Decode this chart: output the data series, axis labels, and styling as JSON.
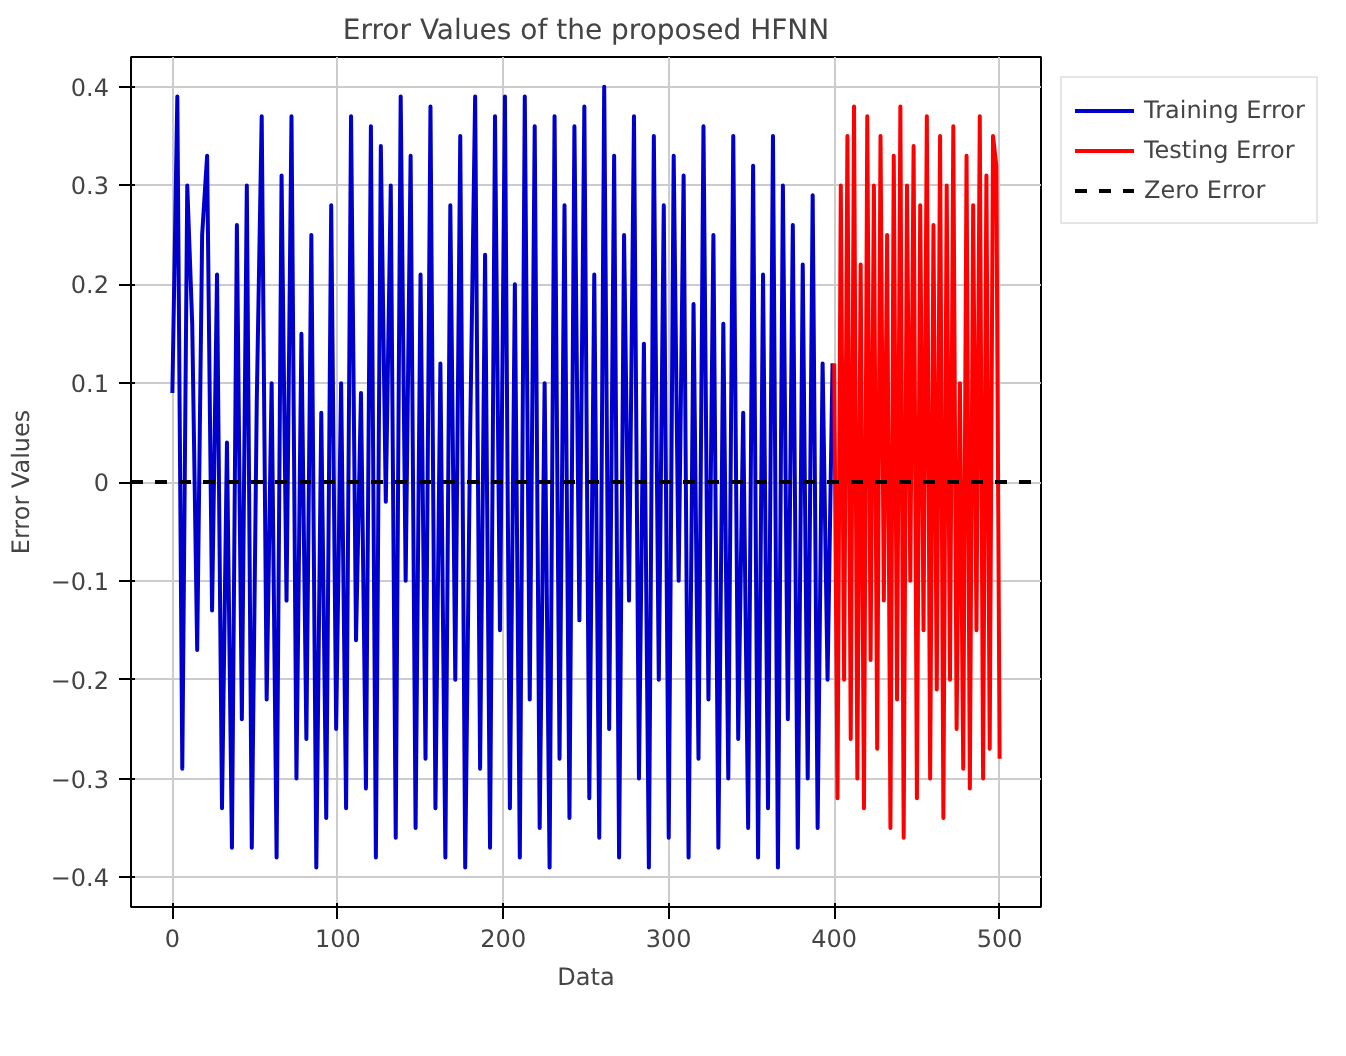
{
  "chart_data": {
    "type": "line",
    "title": "Error Values of the proposed HFNN",
    "xlabel": "Data",
    "ylabel": "Error Values",
    "xlim": [
      -25,
      525
    ],
    "ylim": [
      -0.43,
      0.43
    ],
    "xticks": [
      0,
      100,
      200,
      300,
      400,
      500
    ],
    "yticks": [
      -0.4,
      -0.3,
      -0.2,
      -0.1,
      0.0,
      0.1,
      0.2,
      0.3,
      0.4
    ],
    "grid": true,
    "legend": "top right",
    "line_style": "solid",
    "ref_lines": [
      {
        "axis": "y",
        "value": 0,
        "label": "Zero Error",
        "color": "#000000",
        "line_style": "dashed"
      }
    ],
    "series": [
      {
        "name": "Training Error",
        "color": "#0000cc",
        "x": [
          0,
          3,
          6,
          9,
          12,
          15,
          18,
          21,
          24,
          27,
          30,
          33,
          36,
          39,
          42,
          45,
          48,
          51,
          54,
          57,
          60,
          63,
          66,
          69,
          72,
          75,
          78,
          81,
          84,
          87,
          90,
          93,
          96,
          99,
          102,
          105,
          108,
          111,
          114,
          117,
          120,
          123,
          126,
          129,
          132,
          135,
          138,
          141,
          144,
          147,
          150,
          153,
          156,
          159,
          162,
          165,
          168,
          171,
          174,
          177,
          180,
          183,
          186,
          189,
          192,
          195,
          198,
          201,
          204,
          207,
          210,
          213,
          216,
          219,
          222,
          225,
          228,
          231,
          234,
          237,
          240,
          243,
          246,
          249,
          252,
          255,
          258,
          261,
          264,
          267,
          270,
          273,
          276,
          279,
          282,
          285,
          288,
          291,
          294,
          297,
          300,
          303,
          306,
          309,
          312,
          315,
          318,
          321,
          324,
          327,
          330,
          333,
          336,
          339,
          342,
          345,
          348,
          351,
          354,
          357,
          360,
          363,
          366,
          369,
          372,
          375,
          378,
          381,
          384,
          387,
          390,
          393,
          396,
          399
        ],
        "values": [
          0.09,
          0.39,
          -0.29,
          0.3,
          0.16,
          -0.17,
          0.25,
          0.33,
          -0.13,
          0.21,
          -0.33,
          0.04,
          -0.37,
          0.26,
          -0.24,
          0.3,
          -0.37,
          0.08,
          0.37,
          -0.22,
          0.1,
          -0.38,
          0.31,
          -0.12,
          0.37,
          -0.3,
          0.15,
          -0.26,
          0.25,
          -0.39,
          0.07,
          -0.34,
          0.28,
          -0.25,
          0.1,
          -0.33,
          0.37,
          -0.16,
          0.09,
          -0.31,
          0.36,
          -0.38,
          0.34,
          -0.02,
          0.3,
          -0.36,
          0.39,
          -0.1,
          0.33,
          -0.35,
          0.21,
          -0.28,
          0.38,
          -0.33,
          0.12,
          -0.38,
          0.28,
          -0.2,
          0.35,
          -0.39,
          0.05,
          0.39,
          -0.29,
          0.23,
          -0.37,
          0.37,
          -0.15,
          0.39,
          -0.33,
          0.2,
          -0.38,
          0.39,
          -0.22,
          0.36,
          -0.35,
          0.1,
          -0.39,
          0.37,
          -0.28,
          0.28,
          -0.34,
          0.36,
          -0.14,
          0.38,
          -0.32,
          0.21,
          -0.36,
          0.4,
          -0.25,
          0.33,
          -0.38,
          0.25,
          -0.12,
          0.37,
          -0.3,
          0.14,
          -0.39,
          0.35,
          -0.2,
          0.28,
          -0.36,
          0.33,
          -0.1,
          0.31,
          -0.38,
          0.18,
          -0.28,
          0.36,
          -0.22,
          0.25,
          -0.37,
          0.16,
          -0.3,
          0.35,
          -0.26,
          0.07,
          -0.35,
          0.32,
          -0.38,
          0.21,
          -0.33,
          0.35,
          -0.39,
          0.3,
          -0.24,
          0.26,
          -0.37,
          0.22,
          -0.3,
          0.29,
          -0.35,
          0.12,
          -0.2,
          0.12
        ]
      },
      {
        "name": "Testing Error",
        "color": "#ff0000",
        "x": [
          400,
          402,
          404,
          406,
          408,
          410,
          412,
          414,
          416,
          418,
          420,
          422,
          424,
          426,
          428,
          430,
          432,
          434,
          436,
          438,
          440,
          442,
          444,
          446,
          448,
          450,
          452,
          454,
          456,
          458,
          460,
          462,
          464,
          466,
          468,
          470,
          472,
          474,
          476,
          478,
          480,
          482,
          484,
          486,
          488,
          490,
          492,
          494,
          496,
          498,
          500
        ],
        "values": [
          0.12,
          -0.32,
          0.3,
          -0.2,
          0.35,
          -0.26,
          0.38,
          -0.3,
          0.22,
          -0.33,
          0.37,
          -0.18,
          0.3,
          -0.27,
          0.35,
          -0.12,
          0.25,
          -0.35,
          0.33,
          -0.22,
          0.38,
          -0.36,
          0.3,
          -0.1,
          0.34,
          -0.32,
          0.28,
          -0.15,
          0.37,
          -0.3,
          0.26,
          -0.21,
          0.35,
          -0.34,
          0.3,
          -0.2,
          0.36,
          -0.25,
          0.1,
          -0.29,
          0.33,
          -0.31,
          0.28,
          -0.15,
          0.37,
          -0.3,
          0.31,
          -0.27,
          0.35,
          0.32,
          -0.28
        ]
      }
    ]
  }
}
